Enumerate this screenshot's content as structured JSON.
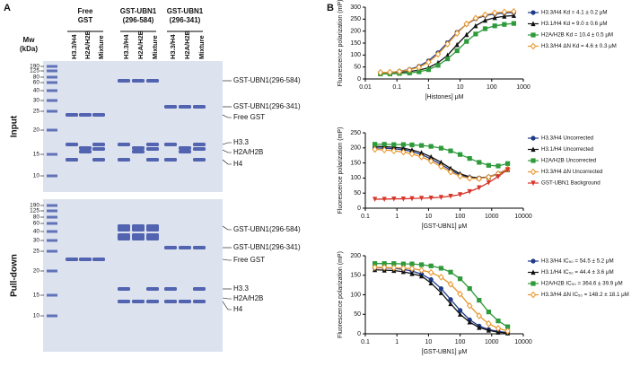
{
  "panel_a": {
    "label": "A",
    "mw_label": [
      "Mw",
      "(kDa)"
    ],
    "groups": [
      {
        "title": [
          "Free",
          "GST"
        ]
      },
      {
        "title": [
          "GST-UBN1",
          "(296-584)"
        ]
      },
      {
        "title": [
          "GST-UBN1",
          "(296-341)"
        ]
      }
    ],
    "lanes": [
      "H3.3/H4",
      "H2A/H2B",
      "Mixture"
    ],
    "rows": [
      {
        "label": "Input",
        "markers": [
          190,
          125,
          80,
          60,
          40,
          30,
          25,
          20,
          15,
          10
        ],
        "band_labels": [
          "GST-UBN1(296-584)",
          "GST-UBN1(296-341)",
          "Free GST",
          "H3.3",
          "H2A/H2B",
          "H4"
        ]
      },
      {
        "label": "Pull-down",
        "markers": [
          190,
          125,
          80,
          60,
          40,
          30,
          25,
          20,
          15,
          10
        ],
        "band_labels": [
          "GST-UBN1(296-584)",
          "GST-UBN1(296-341)",
          "Free GST",
          "H3.3",
          "H2A/H2B",
          "H4"
        ]
      }
    ]
  },
  "panel_b_label": "B",
  "chart_data": [
    {
      "type": "line",
      "xscale": "log",
      "ylabel": "Fluorescence polarization (mP)",
      "xlabel": "[Histones] μM",
      "xlim": [
        0.01,
        1000
      ],
      "xticks": [
        0.01,
        0.1,
        1,
        10,
        100,
        1000
      ],
      "ylim": [
        0,
        300
      ],
      "yticks": [
        0,
        50,
        100,
        150,
        200,
        250,
        300
      ],
      "x": [
        0.03,
        0.06,
        0.12,
        0.25,
        0.5,
        1,
        2,
        4,
        8,
        16,
        31,
        62,
        125,
        250,
        500
      ],
      "series": [
        {
          "name": "H3.3/H4 Kd = 4.1 ± 0.2 μM",
          "color": "#1f3a8a",
          "marker": "circle",
          "values": [
            27,
            27,
            32,
            40,
            53,
            76,
            110,
            152,
            195,
            229,
            251,
            265,
            272,
            276,
            278
          ]
        },
        {
          "name": "H3.1/H4 Kd = 9.0 ± 0.6 μM",
          "color": "#111111",
          "marker": "triangle",
          "values": [
            26,
            27,
            28,
            31,
            37,
            47,
            68,
            99,
            143,
            185,
            222,
            245,
            256,
            262,
            265
          ]
        },
        {
          "name": "H2A/H2B Kd = 10.4 ± 0.5 μM",
          "color": "#2e9a3a",
          "marker": "square",
          "values": [
            21,
            21,
            23,
            25,
            30,
            39,
            57,
            84,
            118,
            157,
            188,
            210,
            222,
            228,
            232
          ]
        },
        {
          "name": "H3.3/H4 ΔN Kd = 4.6 ± 0.3 μM",
          "color": "#e8952a",
          "marker": "diamond",
          "values": [
            27,
            28,
            31,
            38,
            49,
            70,
            103,
            146,
            191,
            230,
            254,
            268,
            276,
            280,
            282
          ]
        }
      ]
    },
    {
      "type": "line",
      "xscale": "log",
      "ylabel": "Fluorescence polarization (mP)",
      "xlabel": "[GST-UBN1] μM",
      "xlim": [
        0.1,
        10000
      ],
      "xticks": [
        0.1,
        1,
        10,
        100,
        1000,
        10000
      ],
      "ylim": [
        0,
        250
      ],
      "yticks": [
        0,
        50,
        100,
        150,
        200,
        250
      ],
      "x": [
        0.2,
        0.4,
        0.8,
        1.6,
        3,
        6,
        12,
        25,
        50,
        100,
        200,
        400,
        800,
        1600,
        3200
      ],
      "series": [
        {
          "name": "H3.3/H4 Uncorrected",
          "color": "#1f3a8a",
          "marker": "circle",
          "values": [
            200,
            199,
            197,
            194,
            188,
            178,
            163,
            145,
            126,
            110,
            102,
            100,
            104,
            115,
            130
          ]
        },
        {
          "name": "H3.1/H4 Uncorrected",
          "color": "#111111",
          "marker": "triangle",
          "values": [
            205,
            204,
            202,
            199,
            193,
            184,
            170,
            152,
            132,
            114,
            104,
            100,
            103,
            113,
            128
          ]
        },
        {
          "name": "H2A/H2B Uncorrected",
          "color": "#2e9a3a",
          "marker": "square",
          "values": [
            212,
            212,
            211,
            211,
            210,
            208,
            205,
            199,
            190,
            178,
            165,
            152,
            142,
            140,
            148
          ]
        },
        {
          "name": "H3.3/H4 ΔN Uncorrected",
          "color": "#e8952a",
          "marker": "diamond",
          "values": [
            195,
            193,
            190,
            186,
            180,
            170,
            156,
            138,
            120,
            106,
            99,
            98,
            103,
            114,
            130
          ]
        },
        {
          "name": "GST-UBN1 Background",
          "color": "#d8352a",
          "marker": "itriangle",
          "values": [
            30,
            30,
            31,
            31,
            32,
            33,
            34,
            36,
            40,
            45,
            55,
            68,
            85,
            105,
            128
          ]
        }
      ]
    },
    {
      "type": "line",
      "xscale": "log",
      "ylabel": "Fluorescence polarization (mP)",
      "xlabel": "[GST-UBN1] μM",
      "xlim": [
        0.1,
        10000
      ],
      "xticks": [
        0.1,
        1,
        10,
        100,
        1000,
        10000
      ],
      "ylim": [
        0,
        200
      ],
      "yticks": [
        0,
        50,
        100,
        150,
        200
      ],
      "x": [
        0.2,
        0.4,
        0.8,
        1.6,
        3,
        6,
        12,
        25,
        50,
        100,
        200,
        400,
        800,
        1600,
        3200
      ],
      "series": [
        {
          "name": "H3.3/H4 IC₅₀ = 54.5 ± 5.2 μM",
          "color": "#1f3a8a",
          "marker": "circle",
          "values": [
            169,
            169,
            168,
            165,
            161,
            153,
            139,
            116,
            88,
            60,
            36,
            20,
            11,
            6,
            3
          ]
        },
        {
          "name": "H3.1/H4 IC₅₀ = 44.4 ± 3.6 μM",
          "color": "#111111",
          "marker": "triangle",
          "values": [
            164,
            163,
            162,
            159,
            154,
            148,
            130,
            105,
            77,
            50,
            30,
            16,
            9,
            4,
            2
          ]
        },
        {
          "name": "H2A/H2B IC₅₀ = 364.6 ± 39.9 μM",
          "color": "#2e9a3a",
          "marker": "square",
          "values": [
            180,
            180,
            180,
            179,
            179,
            177,
            174,
            168,
            158,
            141,
            116,
            86,
            56,
            33,
            18
          ]
        },
        {
          "name": "H3.3/H4 ΔN IC₅₀ = 148.2 ± 18.1 μM",
          "color": "#e8952a",
          "marker": "diamond",
          "values": [
            170,
            170,
            169,
            168,
            167,
            163,
            157,
            145,
            127,
            102,
            72,
            46,
            26,
            14,
            7
          ]
        }
      ]
    }
  ]
}
